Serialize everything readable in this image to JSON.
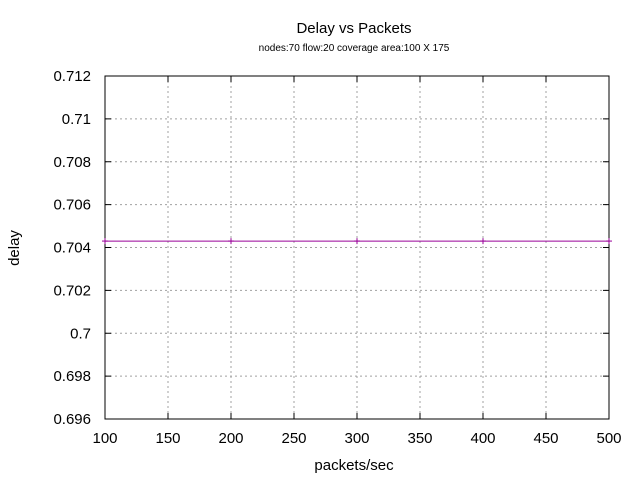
{
  "chart_data": {
    "type": "line",
    "title": "Delay vs Packets",
    "subtitle": "nodes:70  flow:20  coverage area:100 X 175",
    "xlabel": "packets/sec",
    "ylabel": "delay",
    "xlim": [
      100,
      500
    ],
    "ylim": [
      0.696,
      0.712
    ],
    "x_ticks": [
      "100",
      "150",
      "200",
      "250",
      "300",
      "350",
      "400",
      "450",
      "500"
    ],
    "y_ticks": [
      "0.696",
      "0.698",
      "0.7",
      "0.702",
      "0.704",
      "0.706",
      "0.708",
      "0.71",
      "0.712"
    ],
    "grid": true,
    "series": [
      {
        "color": "#990099",
        "x": [
          100,
          200,
          300,
          400,
          500
        ],
        "y": [
          0.7043,
          0.7043,
          0.7043,
          0.7043,
          0.7043
        ]
      }
    ]
  }
}
